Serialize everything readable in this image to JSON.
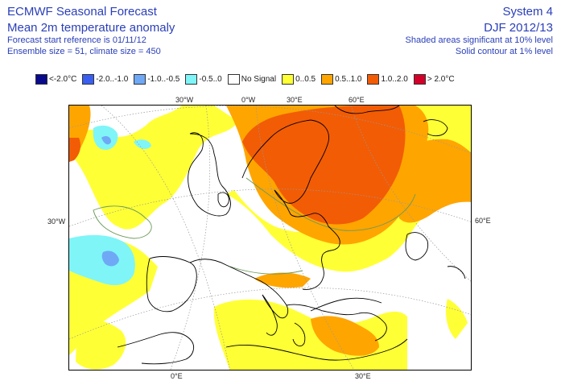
{
  "header": {
    "title": "ECMWF Seasonal Forecast",
    "subtitle": "Mean 2m temperature anomaly",
    "start_ref": "Forecast start reference is 01/11/12",
    "ensemble": "Ensemble size = 51, climate size = 450",
    "system": "System 4",
    "season": "DJF 2012/13",
    "shaded_note": "Shaded areas significant at 10% level",
    "contour_note": "Solid contour at 1% level"
  },
  "legend": [
    {
      "label": "<-2.0°C",
      "color": "#0a0a8c"
    },
    {
      "label": "-2.0..-1.0",
      "color": "#3a5ff0"
    },
    {
      "label": "-1.0..-0.5",
      "color": "#6fa8f5"
    },
    {
      "label": "-0.5..0",
      "color": "#7ff5f8"
    },
    {
      "label": "No Signal",
      "color": "#ffffff"
    },
    {
      "label": "0..0.5",
      "color": "#ffff36"
    },
    {
      "label": "0.5..1.0",
      "color": "#ffa500"
    },
    {
      "label": "1.0..2.0",
      "color": "#f25c05"
    },
    {
      "label": "> 2.0°C",
      "color": "#d4002a"
    }
  ],
  "axis_labels": {
    "top_30w": "30°W",
    "top_0w": "0°W",
    "top_30e": "30°E",
    "top_60e": "60°E",
    "left_30w": "30°W",
    "right_60e": "60°E",
    "bottom_0e": "0°E",
    "bottom_30e": "30°E"
  }
}
